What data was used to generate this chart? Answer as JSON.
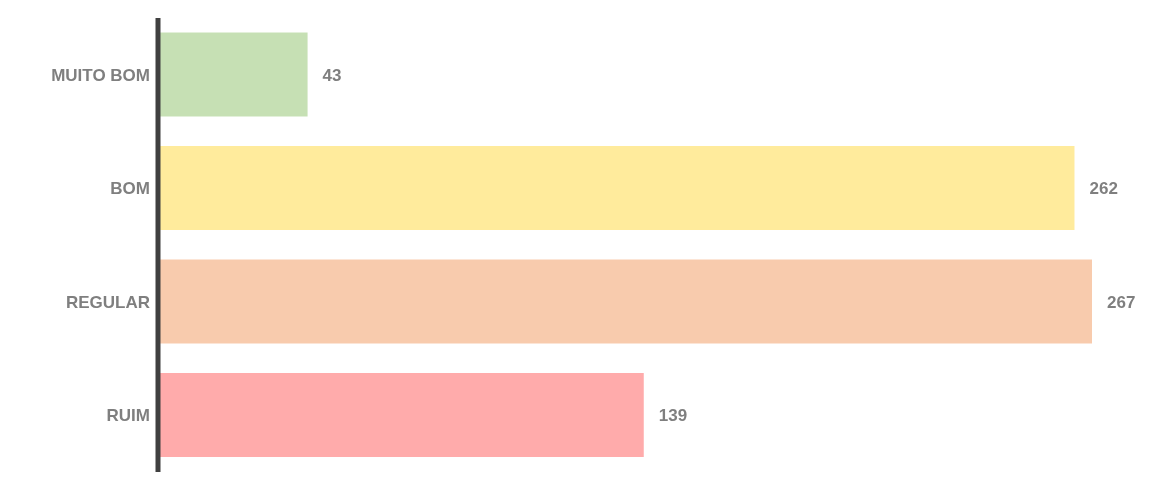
{
  "chart_data": {
    "type": "bar",
    "orientation": "horizontal",
    "categories": [
      "MUITO BOM",
      "BOM",
      "REGULAR",
      "RUIM"
    ],
    "values": [
      43,
      262,
      267,
      139
    ],
    "colors": [
      "#c6e0b4",
      "#ffeb9c",
      "#f8cbad",
      "#ffabab"
    ],
    "data_labels": true
  }
}
